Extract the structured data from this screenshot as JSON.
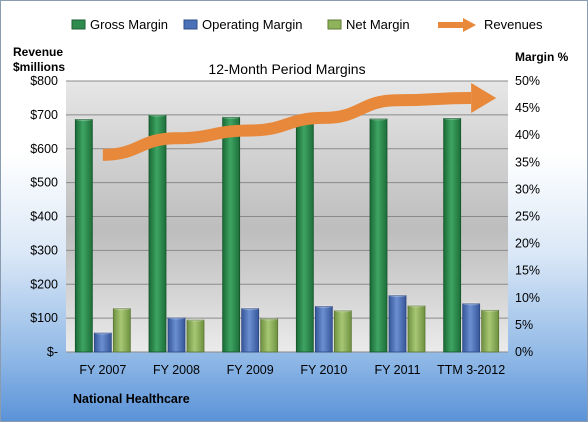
{
  "chart_data": {
    "type": "bar",
    "title": "12-Month Period Margins",
    "company": "National Healthcare",
    "left_axis_title": [
      "Revenue",
      "$millions"
    ],
    "right_axis_title": "Margin %",
    "left_axis": {
      "ticks": [
        "$-",
        "$100",
        "$200",
        "$300",
        "$400",
        "$500",
        "$600",
        "$700",
        "$800"
      ],
      "range": [
        0,
        800
      ]
    },
    "right_axis": {
      "ticks": [
        "0%",
        "5%",
        "10%",
        "15%",
        "20%",
        "25%",
        "30%",
        "35%",
        "40%",
        "45%",
        "50%"
      ],
      "range": [
        0,
        50
      ]
    },
    "categories": [
      "FY 2007",
      "FY 2008",
      "FY 2009",
      "FY 2010",
      "FY 2011",
      "TTM 3-2012"
    ],
    "series": [
      {
        "name": "Gross Margin",
        "type": "bar",
        "axis": "right",
        "color": "#2e8b4e",
        "values": [
          42.9,
          43.7,
          43.3,
          42.9,
          43.0,
          43.1
        ]
      },
      {
        "name": "Operating Margin",
        "type": "bar",
        "axis": "right",
        "color": "#4a72b8",
        "values": [
          3.5,
          6.3,
          8.0,
          8.4,
          10.4,
          8.9
        ]
      },
      {
        "name": "Net Margin",
        "type": "bar",
        "axis": "right",
        "color": "#8fb35a",
        "values": [
          8.0,
          5.9,
          6.1,
          7.6,
          8.5,
          7.7
        ]
      },
      {
        "name": "Revenues",
        "type": "arrow",
        "axis": "left",
        "color": "#e8883a",
        "values": [
          582,
          631,
          654,
          691,
          743,
          750
        ]
      }
    ],
    "legend_position": "top",
    "grid": true
  }
}
